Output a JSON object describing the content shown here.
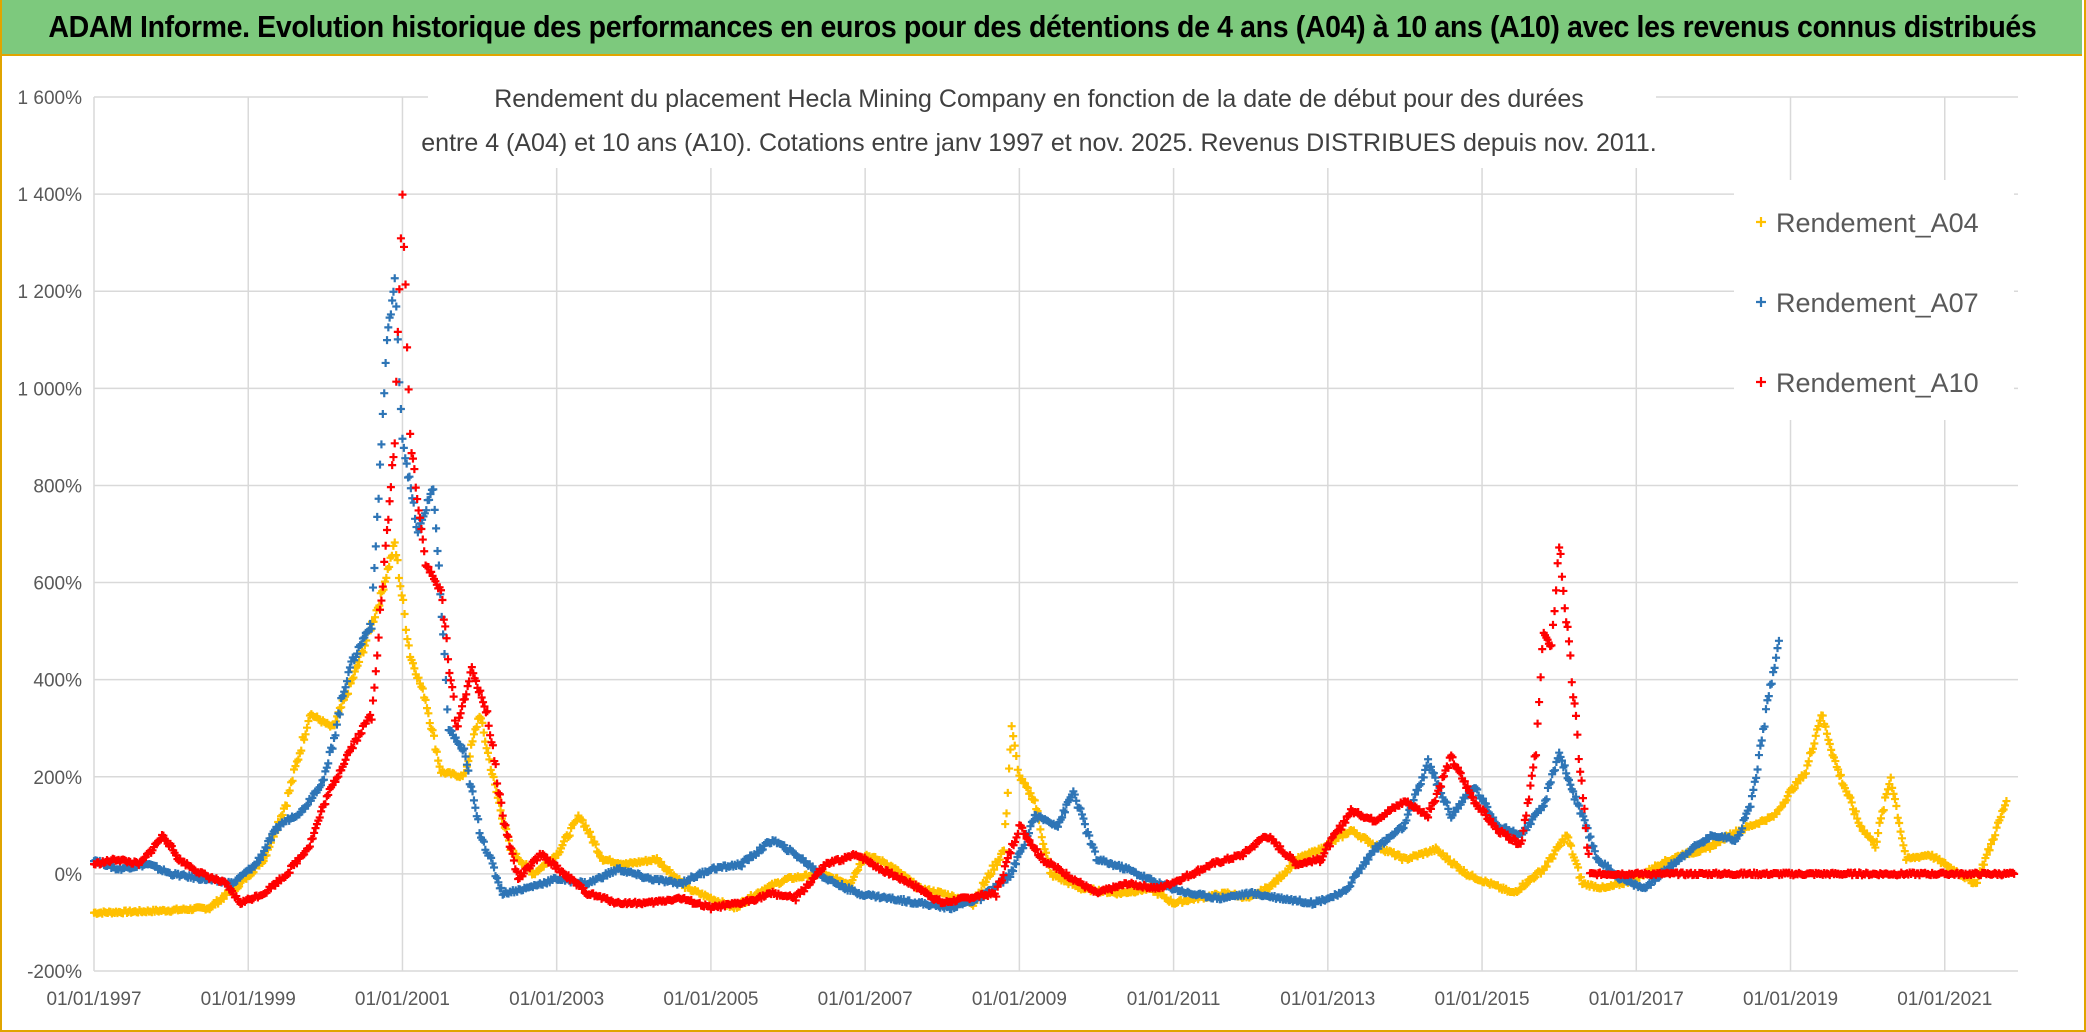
{
  "banner": {
    "title": "ADAM Informe. Evolution historique des performances en euros pour des détentions de 4 ans (A04) à 10 ans (A10) avec les revenus connus distribués"
  },
  "colors": {
    "A04": "#ffc000",
    "A07": "#2e75b6",
    "A10": "#ff0000",
    "banner": "#7dc97d",
    "frame": "#e0a400",
    "grid": "#d9d9d9"
  },
  "chart_data": {
    "type": "scatter",
    "title_line1": "Rendement du placement Hecla Mining Company en fonction de la date de début pour des durées",
    "title_line2": "entre 4 (A04) et 10 ans (A10). Cotations entre janv 1997 et nov. 2025. Revenus DISTRIBUES depuis nov. 2011.",
    "xlabel": "",
    "ylabel": "",
    "xlim": [
      1997.0,
      2021.95
    ],
    "ylim": [
      -200,
      1600
    ],
    "x_ticks": [
      "01/01/1997",
      "01/01/1999",
      "01/01/2001",
      "01/01/2003",
      "01/01/2005",
      "01/01/2007",
      "01/01/2009",
      "01/01/2011",
      "01/01/2013",
      "01/01/2015",
      "01/01/2017",
      "01/01/2019",
      "01/01/2021"
    ],
    "y_ticks": [
      "-200%",
      "0%",
      "200%",
      "400%",
      "600%",
      "800%",
      "1 000%",
      "1 200%",
      "1 400%",
      "1 600%"
    ],
    "y_tick_values": [
      -200,
      0,
      200,
      400,
      600,
      800,
      1000,
      1200,
      1400,
      1600
    ],
    "legend_position": "top-right",
    "series": [
      {
        "name": "Rendement_A04",
        "marker": "+",
        "points": [
          [
            1997.0,
            -80
          ],
          [
            1997.5,
            -78
          ],
          [
            1998.0,
            -75
          ],
          [
            1998.5,
            -70
          ],
          [
            1998.9,
            -20
          ],
          [
            1999.2,
            30
          ],
          [
            1999.5,
            150
          ],
          [
            1999.8,
            330
          ],
          [
            2000.1,
            300
          ],
          [
            2000.4,
            420
          ],
          [
            2000.7,
            560
          ],
          [
            2000.9,
            680
          ],
          [
            2001.1,
            450
          ],
          [
            2001.3,
            360
          ],
          [
            2001.5,
            210
          ],
          [
            2001.8,
            200
          ],
          [
            2002.0,
            330
          ],
          [
            2002.2,
            180
          ],
          [
            2002.4,
            50
          ],
          [
            2002.7,
            0
          ],
          [
            2003.0,
            40
          ],
          [
            2003.3,
            120
          ],
          [
            2003.6,
            30
          ],
          [
            2003.9,
            20
          ],
          [
            2004.3,
            30
          ],
          [
            2004.7,
            -30
          ],
          [
            2005.0,
            -50
          ],
          [
            2005.3,
            -70
          ],
          [
            2005.7,
            -30
          ],
          [
            2006.0,
            -10
          ],
          [
            2006.4,
            0
          ],
          [
            2006.8,
            -20
          ],
          [
            2007.0,
            40
          ],
          [
            2007.3,
            20
          ],
          [
            2007.7,
            -30
          ],
          [
            2008.0,
            -40
          ],
          [
            2008.4,
            -60
          ],
          [
            2008.8,
            50
          ],
          [
            2008.9,
            300
          ],
          [
            2009.0,
            200
          ],
          [
            2009.2,
            150
          ],
          [
            2009.4,
            0
          ],
          [
            2009.8,
            -30
          ],
          [
            2010.3,
            -40
          ],
          [
            2010.7,
            -30
          ],
          [
            2011.0,
            -60
          ],
          [
            2011.3,
            -50
          ],
          [
            2011.7,
            -40
          ],
          [
            2012.0,
            -50
          ],
          [
            2012.3,
            -20
          ],
          [
            2012.6,
            30
          ],
          [
            2012.9,
            50
          ],
          [
            2013.3,
            90
          ],
          [
            2013.6,
            60
          ],
          [
            2014.0,
            30
          ],
          [
            2014.4,
            50
          ],
          [
            2014.8,
            0
          ],
          [
            2015.1,
            -20
          ],
          [
            2015.4,
            -40
          ],
          [
            2015.8,
            10
          ],
          [
            2016.1,
            80
          ],
          [
            2016.3,
            -20
          ],
          [
            2016.6,
            -30
          ],
          [
            2017.0,
            -10
          ],
          [
            2017.3,
            20
          ],
          [
            2017.6,
            40
          ],
          [
            2017.9,
            50
          ],
          [
            2018.2,
            80
          ],
          [
            2018.5,
            100
          ],
          [
            2018.8,
            120
          ],
          [
            2019.0,
            170
          ],
          [
            2019.2,
            210
          ],
          [
            2019.4,
            330
          ],
          [
            2019.6,
            220
          ],
          [
            2019.9,
            100
          ],
          [
            2020.1,
            60
          ],
          [
            2020.3,
            200
          ],
          [
            2020.5,
            30
          ],
          [
            2020.8,
            40
          ],
          [
            2021.1,
            10
          ],
          [
            2021.4,
            -20
          ],
          [
            2021.6,
            60
          ],
          [
            2021.8,
            150
          ]
        ]
      },
      {
        "name": "Rendement_A07",
        "marker": "+",
        "points": [
          [
            1997.0,
            30
          ],
          [
            1997.3,
            10
          ],
          [
            1997.7,
            20
          ],
          [
            1998.0,
            0
          ],
          [
            1998.4,
            -10
          ],
          [
            1998.8,
            -20
          ],
          [
            1999.1,
            20
          ],
          [
            1999.4,
            100
          ],
          [
            1999.7,
            130
          ],
          [
            2000.0,
            200
          ],
          [
            2000.3,
            420
          ],
          [
            2000.6,
            520
          ],
          [
            2000.8,
            1100
          ],
          [
            2000.9,
            1220
          ],
          [
            2001.0,
            900
          ],
          [
            2001.2,
            700
          ],
          [
            2001.4,
            800
          ],
          [
            2001.6,
            300
          ],
          [
            2001.8,
            250
          ],
          [
            2002.0,
            90
          ],
          [
            2002.3,
            -40
          ],
          [
            2002.6,
            -30
          ],
          [
            2003.0,
            -10
          ],
          [
            2003.4,
            -20
          ],
          [
            2003.8,
            10
          ],
          [
            2004.2,
            -10
          ],
          [
            2004.6,
            -20
          ],
          [
            2005.0,
            10
          ],
          [
            2005.4,
            20
          ],
          [
            2005.8,
            70
          ],
          [
            2006.1,
            40
          ],
          [
            2006.5,
            -10
          ],
          [
            2006.9,
            -40
          ],
          [
            2007.3,
            -50
          ],
          [
            2007.7,
            -60
          ],
          [
            2008.1,
            -70
          ],
          [
            2008.5,
            -50
          ],
          [
            2008.9,
            0
          ],
          [
            2009.2,
            120
          ],
          [
            2009.5,
            100
          ],
          [
            2009.7,
            170
          ],
          [
            2010.0,
            30
          ],
          [
            2010.4,
            10
          ],
          [
            2010.8,
            -20
          ],
          [
            2011.2,
            -40
          ],
          [
            2011.6,
            -50
          ],
          [
            2012.0,
            -40
          ],
          [
            2012.4,
            -50
          ],
          [
            2012.8,
            -60
          ],
          [
            2013.2,
            -40
          ],
          [
            2013.6,
            50
          ],
          [
            2014.0,
            100
          ],
          [
            2014.3,
            230
          ],
          [
            2014.6,
            120
          ],
          [
            2014.9,
            180
          ],
          [
            2015.2,
            100
          ],
          [
            2015.5,
            80
          ],
          [
            2015.8,
            140
          ],
          [
            2016.0,
            250
          ],
          [
            2016.2,
            160
          ],
          [
            2016.5,
            30
          ],
          [
            2016.8,
            -10
          ],
          [
            2017.1,
            -30
          ],
          [
            2017.4,
            10
          ],
          [
            2017.7,
            50
          ],
          [
            2018.0,
            80
          ],
          [
            2018.3,
            70
          ],
          [
            2018.5,
            150
          ],
          [
            2018.7,
            350
          ],
          [
            2018.85,
            480
          ]
        ]
      },
      {
        "name": "Rendement_A10",
        "marker": "+",
        "points": [
          [
            1997.0,
            20
          ],
          [
            1997.3,
            30
          ],
          [
            1997.6,
            20
          ],
          [
            1997.9,
            80
          ],
          [
            1998.1,
            30
          ],
          [
            1998.4,
            0
          ],
          [
            1998.7,
            -20
          ],
          [
            1998.9,
            -60
          ],
          [
            1999.2,
            -40
          ],
          [
            1999.5,
            0
          ],
          [
            1999.8,
            60
          ],
          [
            2000.0,
            150
          ],
          [
            2000.3,
            250
          ],
          [
            2000.6,
            330
          ],
          [
            2000.8,
            700
          ],
          [
            2000.9,
            900
          ],
          [
            2001.0,
            1400
          ],
          [
            2001.1,
            900
          ],
          [
            2001.3,
            640
          ],
          [
            2001.5,
            580
          ],
          [
            2001.7,
            300
          ],
          [
            2001.9,
            420
          ],
          [
            2002.1,
            330
          ],
          [
            2002.3,
            120
          ],
          [
            2002.5,
            -10
          ],
          [
            2002.8,
            40
          ],
          [
            2003.1,
            0
          ],
          [
            2003.4,
            -40
          ],
          [
            2003.8,
            -60
          ],
          [
            2004.2,
            -60
          ],
          [
            2004.6,
            -50
          ],
          [
            2005.0,
            -70
          ],
          [
            2005.4,
            -60
          ],
          [
            2005.8,
            -40
          ],
          [
            2006.1,
            -50
          ],
          [
            2006.5,
            20
          ],
          [
            2006.9,
            40
          ],
          [
            2007.2,
            10
          ],
          [
            2007.6,
            -20
          ],
          [
            2008.0,
            -60
          ],
          [
            2008.3,
            -50
          ],
          [
            2008.7,
            -40
          ],
          [
            2009.0,
            100
          ],
          [
            2009.3,
            30
          ],
          [
            2009.7,
            -10
          ],
          [
            2010.0,
            -40
          ],
          [
            2010.4,
            -20
          ],
          [
            2010.8,
            -30
          ],
          [
            2011.1,
            -10
          ],
          [
            2011.5,
            20
          ],
          [
            2011.9,
            40
          ],
          [
            2012.2,
            80
          ],
          [
            2012.6,
            20
          ],
          [
            2012.9,
            30
          ],
          [
            2013.3,
            130
          ],
          [
            2013.6,
            110
          ],
          [
            2014.0,
            150
          ],
          [
            2014.3,
            120
          ],
          [
            2014.6,
            240
          ],
          [
            2014.9,
            150
          ],
          [
            2015.2,
            90
          ],
          [
            2015.5,
            60
          ],
          [
            2015.7,
            250
          ],
          [
            2015.8,
            500
          ],
          [
            2015.9,
            460
          ],
          [
            2016.0,
            680
          ],
          [
            2016.4,
            0
          ],
          [
            2017.0,
            0
          ],
          [
            2018.0,
            0
          ],
          [
            2019.0,
            0
          ],
          [
            2020.0,
            0
          ],
          [
            2021.0,
            0
          ],
          [
            2021.9,
            0
          ]
        ]
      }
    ]
  }
}
